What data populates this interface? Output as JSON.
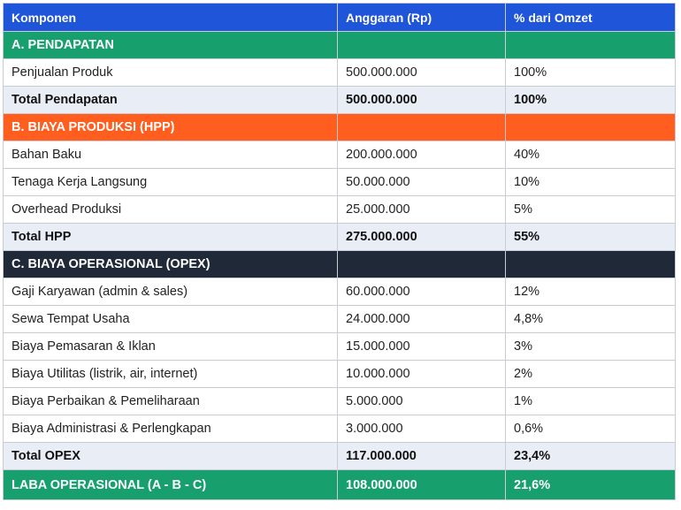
{
  "columns": [
    "Komponen",
    "Anggaran (Rp)",
    "% dari Omzet"
  ],
  "sections": {
    "a": {
      "title": "A. PENDAPATAN",
      "items": [
        {
          "label": "Penjualan Produk",
          "amount": "500.000.000",
          "pct": "100%"
        }
      ],
      "total": {
        "label": "Total Pendapatan",
        "amount": "500.000.000",
        "pct": "100%"
      }
    },
    "b": {
      "title": "B. BIAYA PRODUKSI (HPP)",
      "items": [
        {
          "label": "Bahan Baku",
          "amount": "200.000.000",
          "pct": "40%"
        },
        {
          "label": "Tenaga Kerja Langsung",
          "amount": "50.000.000",
          "pct": "10%"
        },
        {
          "label": "Overhead Produksi",
          "amount": "25.000.000",
          "pct": "5%"
        }
      ],
      "total": {
        "label": "Total HPP",
        "amount": "275.000.000",
        "pct": "55%"
      }
    },
    "c": {
      "title": "C. BIAYA OPERASIONAL (OPEX)",
      "items": [
        {
          "label": "Gaji Karyawan (admin & sales)",
          "amount": "60.000.000",
          "pct": "12%"
        },
        {
          "label": "Sewa Tempat Usaha",
          "amount": "24.000.000",
          "pct": "4,8%"
        },
        {
          "label": "Biaya Pemasaran & Iklan",
          "amount": "15.000.000",
          "pct": "3%"
        },
        {
          "label": "Biaya Utilitas (listrik, air, internet)",
          "amount": "10.000.000",
          "pct": "2%"
        },
        {
          "label": "Biaya Perbaikan & Pemeliharaan",
          "amount": "5.000.000",
          "pct": "1%"
        },
        {
          "label": "Biaya Administrasi & Perlengkapan",
          "amount": "3.000.000",
          "pct": "0,6%"
        }
      ],
      "total": {
        "label": "Total OPEX",
        "amount": "117.000.000",
        "pct": "23,4%"
      }
    }
  },
  "result": {
    "label": "LABA OPERASIONAL (A - B - C)",
    "amount": "108.000.000",
    "pct": "21,6%"
  },
  "colors": {
    "header": "#1f55d9",
    "section_a": "#17a06d",
    "section_b": "#ff5e1f",
    "section_c": "#1f2937",
    "total_row": "#e9eef6",
    "result_row": "#17a06d"
  }
}
